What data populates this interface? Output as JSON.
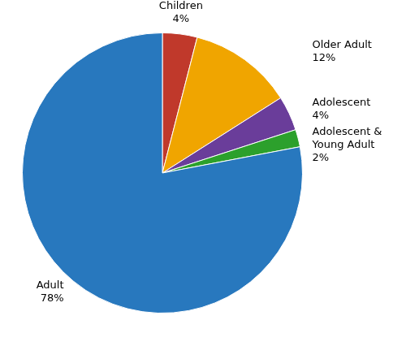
{
  "chart_data": {
    "type": "pie",
    "categories": [
      "Children",
      "Older Adult",
      "Adolescent",
      "Adolescent &\nYoung Adult",
      "Adult"
    ],
    "values": [
      4,
      12,
      4,
      2,
      78
    ],
    "value_labels": [
      "4%",
      "12%",
      "4%",
      "2%",
      "78%"
    ],
    "colors": [
      "#c0392b",
      "#f0a500",
      "#6a3d9a",
      "#2ca02c",
      "#2878be"
    ],
    "data_labels": true
  }
}
